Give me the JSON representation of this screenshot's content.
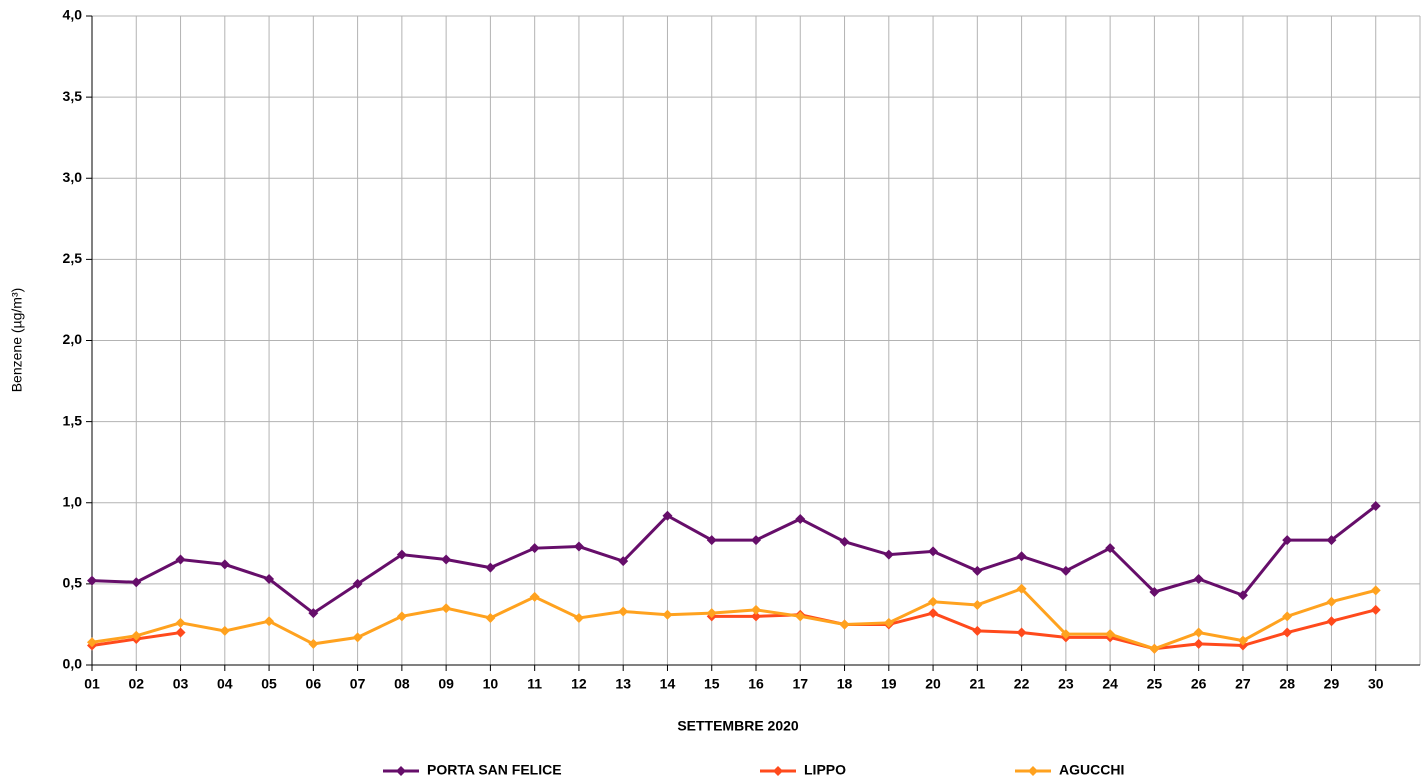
{
  "chart_data": {
    "type": "line",
    "x_label": "SETTEMBRE 2020",
    "y_label": "Benzene (µg/m³)",
    "categories": [
      "01",
      "02",
      "03",
      "04",
      "05",
      "06",
      "07",
      "08",
      "09",
      "10",
      "11",
      "12",
      "13",
      "14",
      "15",
      "16",
      "17",
      "18",
      "19",
      "20",
      "21",
      "22",
      "23",
      "24",
      "25",
      "26",
      "27",
      "28",
      "29",
      "30"
    ],
    "series": [
      {
        "name": "PORTA SAN FELICE",
        "color": "#660e6a",
        "values": [
          0.52,
          0.51,
          0.65,
          0.62,
          0.53,
          0.32,
          0.5,
          0.68,
          0.65,
          0.6,
          0.72,
          0.73,
          0.64,
          0.92,
          0.77,
          0.77,
          0.9,
          0.76,
          0.68,
          0.7,
          0.58,
          0.67,
          0.58,
          0.72,
          0.45,
          0.53,
          0.43,
          0.77,
          0.77,
          0.98
        ]
      },
      {
        "name": "LIPPO",
        "color": "#ff4a1c",
        "values": [
          0.12,
          0.16,
          0.2,
          null,
          null,
          null,
          null,
          null,
          null,
          null,
          null,
          null,
          null,
          null,
          0.3,
          0.3,
          0.31,
          0.25,
          0.25,
          0.32,
          0.21,
          0.2,
          0.17,
          0.17,
          0.1,
          0.13,
          0.12,
          0.2,
          0.27,
          0.34
        ]
      },
      {
        "name": "AGUCCHI",
        "color": "#ffa21f",
        "values": [
          0.14,
          0.18,
          0.26,
          0.21,
          0.27,
          0.13,
          0.17,
          0.3,
          0.35,
          0.29,
          0.42,
          0.29,
          0.33,
          0.31,
          0.32,
          0.34,
          0.3,
          0.25,
          0.26,
          0.39,
          0.37,
          0.47,
          0.19,
          0.19,
          0.1,
          0.2,
          0.15,
          0.3,
          0.39,
          0.46
        ]
      }
    ],
    "ylim": [
      0,
      4
    ],
    "yticks": [
      {
        "value": 0,
        "label": "0,0"
      },
      {
        "value": 0.5,
        "label": "0,5"
      },
      {
        "value": 1,
        "label": "1,0"
      },
      {
        "value": 1.5,
        "label": "1,5"
      },
      {
        "value": 2,
        "label": "2,0"
      },
      {
        "value": 2.5,
        "label": "2,5"
      },
      {
        "value": 3,
        "label": "3,0"
      },
      {
        "value": 3.5,
        "label": "3,5"
      },
      {
        "value": 4,
        "label": "4,0"
      }
    ],
    "grid": true,
    "legend": "bottom"
  }
}
